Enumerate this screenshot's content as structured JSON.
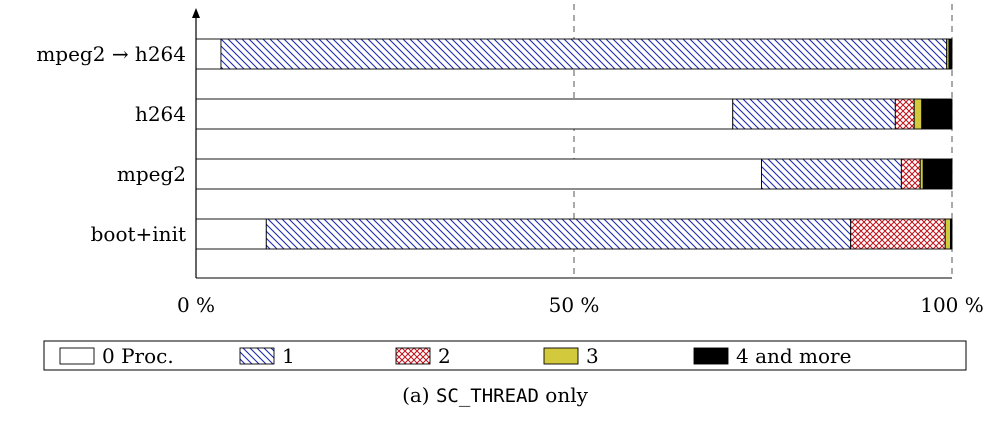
{
  "chart_data": {
    "type": "bar",
    "orientation": "horizontal",
    "stacked": true,
    "categories": [
      "mpeg2 → h264",
      "h264",
      "mpeg2",
      "boot+init"
    ],
    "series": [
      {
        "name": "0 Proc.",
        "values": [
          3.3,
          71.0,
          74.8,
          9.3
        ],
        "color": "#ffffff",
        "pattern": "none"
      },
      {
        "name": "1",
        "values": [
          96.0,
          21.5,
          18.5,
          77.3
        ],
        "color": "#1f2bb0",
        "pattern": "diagonal-hatch"
      },
      {
        "name": "2",
        "values": [
          0.0,
          2.5,
          2.5,
          12.5
        ],
        "color": "#c0101a",
        "pattern": "crosshatch"
      },
      {
        "name": "3",
        "values": [
          0.3,
          1.0,
          0.4,
          0.7
        ],
        "color": "#d2c93c",
        "pattern": "solid"
      },
      {
        "name": "4 and more",
        "values": [
          0.4,
          4.0,
          3.8,
          0.2
        ],
        "color": "#000000",
        "pattern": "solid"
      }
    ],
    "xlim": [
      0,
      100
    ],
    "x_ticks": [
      "0 %",
      "50 %",
      "100 %"
    ],
    "x_tick_values": [
      0,
      50,
      100
    ],
    "gridlines": "dashed-vertical at 50 and 100",
    "legend": "bottom-horizontal",
    "caption_prefix": "(a)",
    "caption_code": "SC_THREAD",
    "caption_suffix": "only"
  }
}
